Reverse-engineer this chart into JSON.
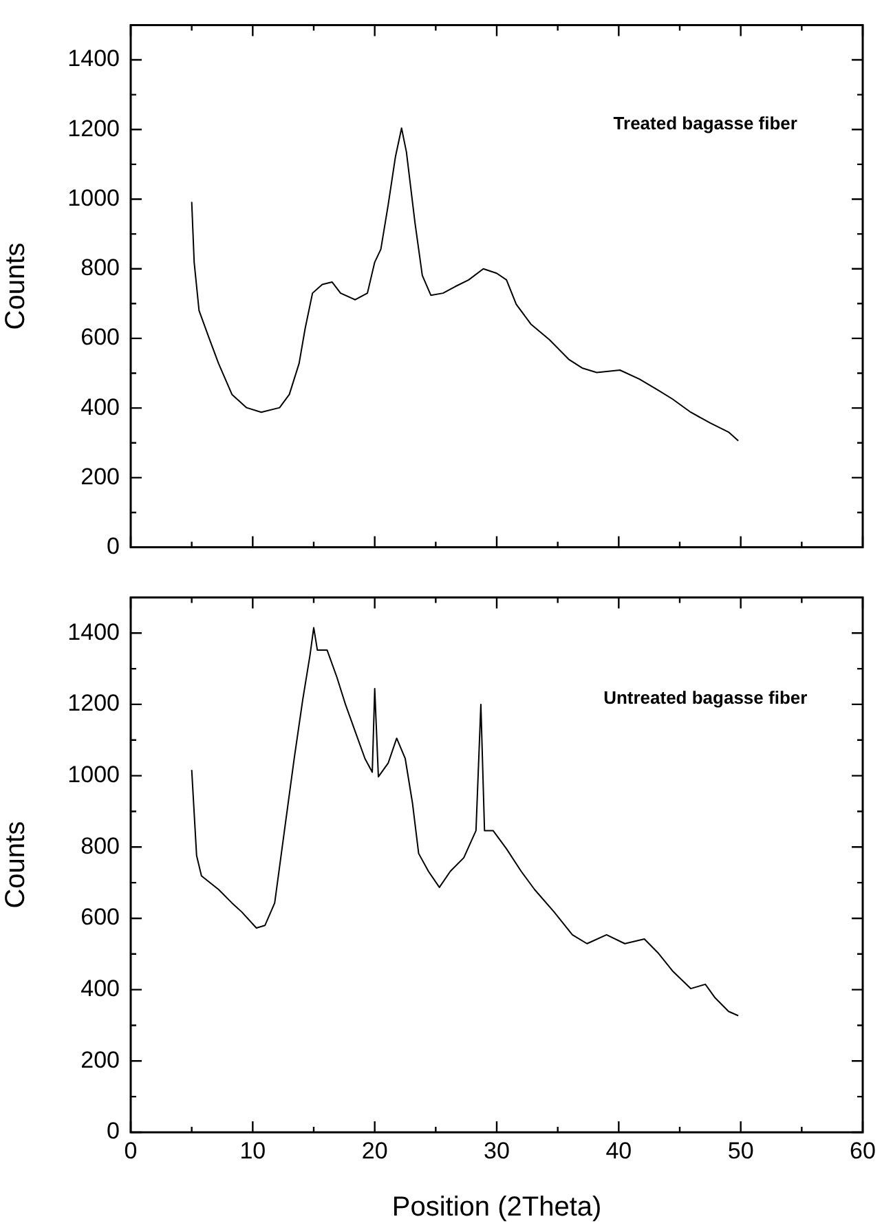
{
  "chart_data": [
    {
      "type": "line",
      "ylabel": "Counts",
      "annotations": [
        "Treated bagasse fiber"
      ],
      "color": "#000000",
      "marker": "none",
      "tick_labels": "y",
      "x": [
        5.0,
        5.2,
        5.6,
        6.4,
        7.2,
        8.3,
        9.5,
        10.7,
        12.2,
        13.0,
        13.8,
        14.3,
        14.9,
        15.7,
        16.5,
        17.2,
        18.4,
        19.4,
        20.0,
        20.5,
        21.1,
        21.7,
        22.2,
        22.6,
        23.3,
        23.9,
        24.6,
        25.6,
        26.6,
        27.7,
        28.9,
        30.0,
        30.8,
        31.6,
        32.8,
        34.3,
        35.9,
        37.0,
        38.2,
        40.1,
        41.7,
        43.2,
        44.4,
        45.9,
        47.5,
        49.0,
        49.8
      ],
      "values": [
        992,
        819,
        680,
        603,
        528,
        439,
        401,
        388,
        401,
        439,
        528,
        629,
        730,
        755,
        762,
        730,
        711,
        730,
        819,
        856,
        983,
        1122,
        1204,
        1135,
        932,
        781,
        724,
        730,
        749,
        768,
        800,
        787,
        768,
        698,
        641,
        597,
        540,
        515,
        502,
        509,
        483,
        452,
        426,
        388,
        357,
        331,
        306
      ],
      "xlim": [
        0,
        60
      ],
      "xticks": [
        0,
        {
          "value": 5,
          "label": null
        },
        10,
        {
          "value": 15,
          "label": null
        },
        20,
        {
          "value": 25,
          "label": null
        },
        30,
        {
          "value": 35,
          "label": null
        },
        40,
        {
          "value": 45,
          "label": null
        },
        50,
        {
          "value": 55,
          "label": null
        },
        60
      ],
      "ylim": [
        0,
        1500
      ],
      "yticks": [
        0,
        {
          "value": 100,
          "label": null
        },
        200,
        {
          "value": 300,
          "label": null
        },
        400,
        {
          "value": 500,
          "label": null
        },
        600,
        {
          "value": 700,
          "label": null
        },
        800,
        {
          "value": 900,
          "label": null
        },
        1000,
        {
          "value": 1100,
          "label": null
        },
        1200,
        {
          "value": 1300,
          "label": null
        },
        1400,
        {
          "value": 1500,
          "label": null
        }
      ]
    },
    {
      "type": "line",
      "xlabel": "Position (2Theta)",
      "ylabel": "Counts",
      "annotations": [
        "Untreated bagasse fiber"
      ],
      "color": "#000000",
      "marker": "none",
      "x": [
        5.0,
        5.4,
        5.8,
        7.2,
        8.3,
        9.1,
        10.3,
        11.0,
        11.8,
        12.6,
        13.4,
        14.1,
        14.7,
        15.0,
        15.3,
        16.1,
        16.9,
        17.6,
        18.4,
        19.2,
        19.8,
        20.0,
        20.3,
        21.1,
        21.8,
        22.5,
        23.1,
        23.6,
        24.4,
        25.3,
        26.2,
        27.3,
        28.3,
        28.7,
        29.0,
        29.7,
        30.8,
        32.0,
        33.1,
        34.7,
        36.2,
        37.4,
        39.0,
        40.5,
        42.1,
        43.2,
        44.4,
        45.9,
        47.1,
        47.9,
        49.0,
        49.8
      ],
      "values": [
        1016,
        776,
        719,
        681,
        643,
        618,
        573,
        580,
        643,
        846,
        1048,
        1213,
        1339,
        1415,
        1352,
        1352,
        1276,
        1200,
        1124,
        1048,
        1010,
        1244,
        997,
        1035,
        1105,
        1048,
        922,
        782,
        732,
        687,
        732,
        770,
        846,
        1200,
        846,
        846,
        795,
        732,
        681,
        618,
        554,
        529,
        554,
        529,
        542,
        504,
        453,
        403,
        415,
        377,
        339,
        327
      ],
      "xlim": [
        0,
        60
      ],
      "xticks": [
        0,
        {
          "value": 5,
          "label": null
        },
        10,
        {
          "value": 15,
          "label": null
        },
        20,
        {
          "value": 25,
          "label": null
        },
        30,
        {
          "value": 35,
          "label": null
        },
        40,
        {
          "value": 45,
          "label": null
        },
        50,
        {
          "value": 55,
          "label": null
        },
        60
      ],
      "ylim": [
        0,
        1500
      ],
      "yticks": [
        0,
        {
          "value": 100,
          "label": null
        },
        200,
        {
          "value": 300,
          "label": null
        },
        400,
        {
          "value": 500,
          "label": null
        },
        600,
        {
          "value": 700,
          "label": null
        },
        800,
        {
          "value": 900,
          "label": null
        },
        1000,
        {
          "value": 1100,
          "label": null
        },
        1200,
        {
          "value": 1300,
          "label": null
        },
        1400,
        {
          "value": 1500,
          "label": null
        }
      ]
    }
  ]
}
